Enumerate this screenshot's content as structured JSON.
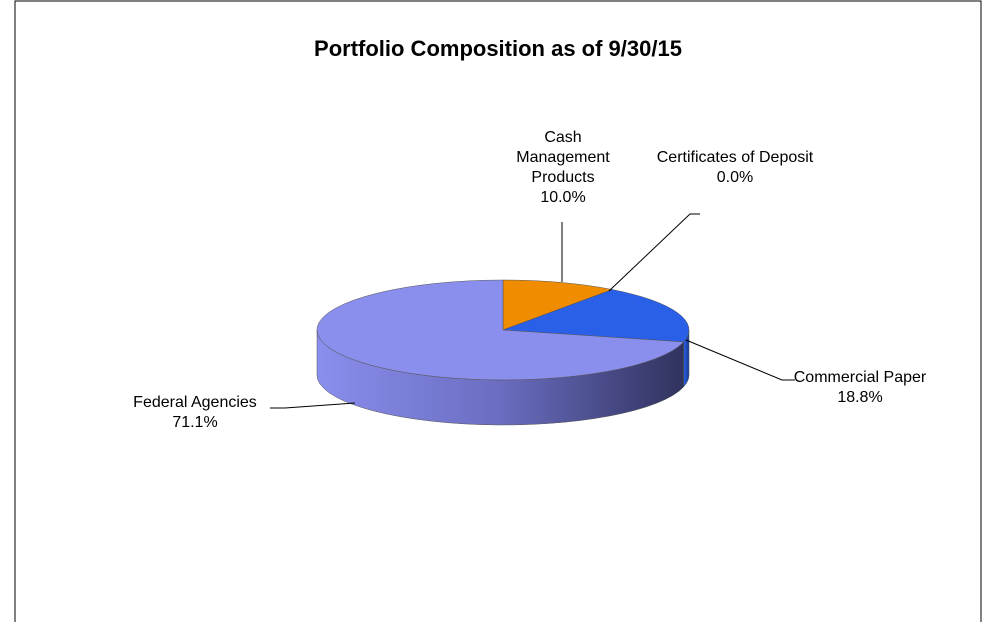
{
  "chart_data": {
    "type": "pie3d",
    "title": "Portfolio Composition as of 9/30/15",
    "categories": [
      "Cash Management Products",
      "Certificates of Deposit",
      "Commercial Paper",
      "Federal Agencies"
    ],
    "values": [
      10.0,
      0.0,
      18.8,
      71.1
    ],
    "value_labels": [
      "10.0%",
      "0.0%",
      "18.8%",
      "71.1%"
    ],
    "colors": [
      "#f08c00",
      "#c0c0c0",
      "#2a5fe8",
      "#8a8eed"
    ]
  }
}
